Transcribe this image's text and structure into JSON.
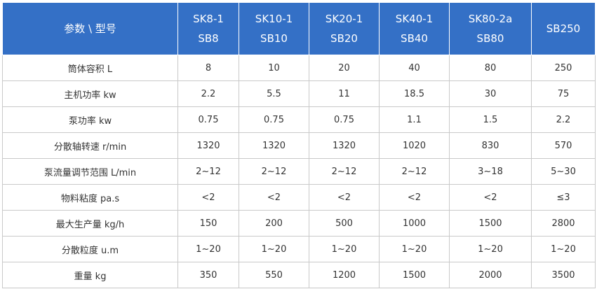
{
  "table": {
    "header": [
      [
        "参数 \\ 型号"
      ],
      [
        "SK8-1",
        "SB8"
      ],
      [
        "SK10-1",
        "SB10"
      ],
      [
        "SK20-1",
        "SB20"
      ],
      [
        "SK40-1",
        "SB40"
      ],
      [
        "SK80-2a",
        "SB80"
      ],
      [
        "SB250"
      ]
    ],
    "rows": [
      [
        "筒体容积 L",
        "8",
        "10",
        "20",
        "40",
        "80",
        "250"
      ],
      [
        "主机功率 kw",
        "2.2",
        "5.5",
        "11",
        "18.5",
        "30",
        "75"
      ],
      [
        "泵功率 kw",
        "0.75",
        "0.75",
        "0.75",
        "1.1",
        "1.5",
        "2.2"
      ],
      [
        "分散轴转速 r/min",
        "1320",
        "1320",
        "1320",
        "1020",
        "830",
        "570"
      ],
      [
        "泵流量调节范围 L/min",
        "2~12",
        "2~12",
        "2~12",
        "2~12",
        "3~18",
        "5~30"
      ],
      [
        "物料粘度 pa.s",
        "<2",
        "<2",
        "<2",
        "<2",
        "<2",
        "≤3"
      ],
      [
        "最大生产量 kg/h",
        "150",
        "200",
        "500",
        "1000",
        "1500",
        "2800"
      ],
      [
        "分散粒度 u.m",
        "1~20",
        "1~20",
        "1~20",
        "1~20",
        "1~20",
        "1~20"
      ],
      [
        "重量 kg",
        "350",
        "550",
        "1200",
        "1500",
        "2000",
        "3500"
      ]
    ]
  }
}
